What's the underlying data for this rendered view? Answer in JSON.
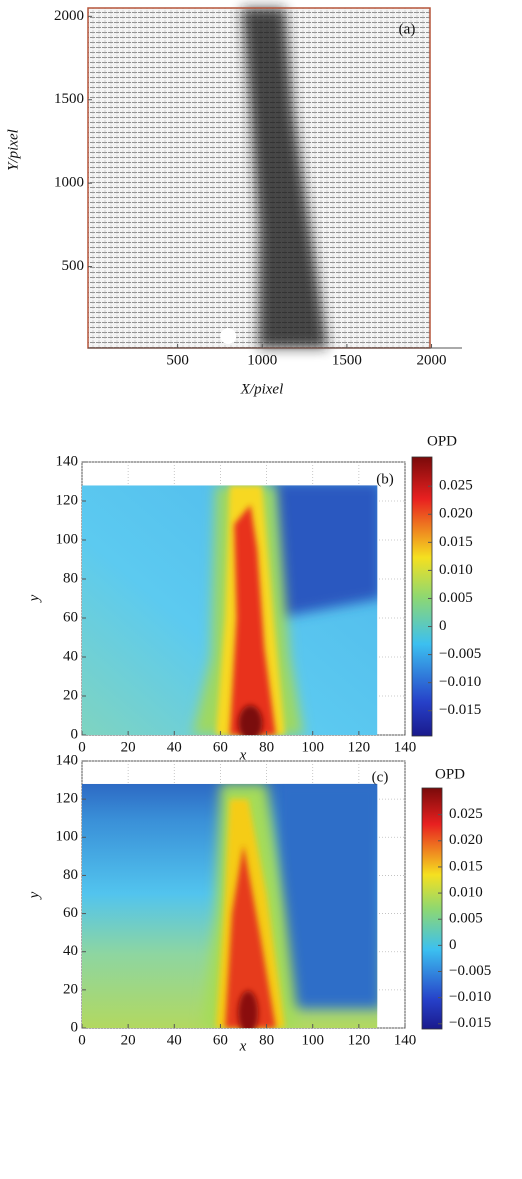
{
  "chart_data": [
    {
      "type": "vector_field",
      "annotation": "(a)",
      "x_label": "X/pixel",
      "y_label": "Y/pixel",
      "xlim": [
        0,
        2180
      ],
      "ylim": [
        0,
        2050
      ],
      "xticks": [
        500,
        1000,
        1500,
        2000
      ],
      "yticks": [
        500,
        1000,
        1500,
        2000
      ]
    },
    {
      "type": "heatmap",
      "annotation": "(b)",
      "x_label": "x",
      "y_label": "y",
      "grid": true,
      "xlim": [
        0,
        140
      ],
      "ylim": [
        0,
        140
      ],
      "xticks": [
        0,
        20,
        40,
        60,
        80,
        100,
        120,
        140
      ],
      "yticks": [
        0,
        20,
        40,
        60,
        80,
        100,
        120,
        140
      ],
      "colorbar_label": "OPD",
      "clim": [
        -0.0195,
        0.0302
      ],
      "cticks": [
        {
          "value": -0.015,
          "label": "−0.015"
        },
        {
          "value": -0.01,
          "label": "−0.010"
        },
        {
          "value": -0.005,
          "label": "−0.005"
        },
        0,
        0.005,
        {
          "value": 0.01,
          "label": "0.010"
        },
        0.015,
        {
          "value": 0.02,
          "label": "0.020"
        },
        0.025
      ]
    },
    {
      "type": "heatmap",
      "annotation": "(c)",
      "x_label": "x",
      "y_label": "y",
      "grid": true,
      "xlim": [
        0,
        140
      ],
      "ylim": [
        0,
        140
      ],
      "xticks": [
        0,
        20,
        40,
        60,
        80,
        100,
        120,
        140
      ],
      "yticks": [
        0,
        20,
        40,
        60,
        80,
        100,
        120,
        140
      ],
      "colorbar_label": "OPD",
      "clim": [
        -0.016,
        0.0301
      ],
      "cticks": [
        {
          "value": -0.015,
          "label": "−0.015"
        },
        {
          "value": -0.01,
          "label": "−0.010"
        },
        {
          "value": -0.005,
          "label": "−0.005"
        },
        0,
        0.005,
        {
          "value": 0.01,
          "label": "0.010"
        },
        0.015,
        {
          "value": 0.02,
          "label": "0.020"
        },
        0.025
      ]
    }
  ]
}
